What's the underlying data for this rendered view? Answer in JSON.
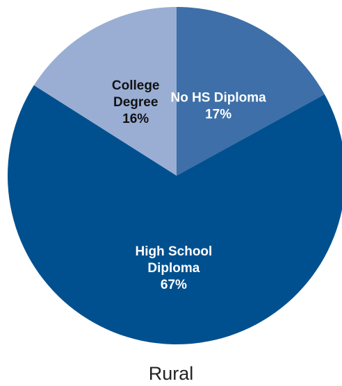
{
  "chart_data": {
    "type": "pie",
    "title": "Rural",
    "start_angle_deg": 0,
    "direction": "clockwise",
    "slices": [
      {
        "name_lines": [
          "No HS Diploma"
        ],
        "pct_label": "17%",
        "value": 17,
        "color": "#3e6fa8",
        "label_color": "#ffffff"
      },
      {
        "name_lines": [
          "High School",
          "Diploma"
        ],
        "pct_label": "67%",
        "value": 67,
        "color": "#00508f",
        "label_color": "#ffffff"
      },
      {
        "name_lines": [
          "College",
          "Degree"
        ],
        "pct_label": "16%",
        "value": 16,
        "color": "#9aaed4",
        "label_color": "#111111"
      }
    ]
  }
}
